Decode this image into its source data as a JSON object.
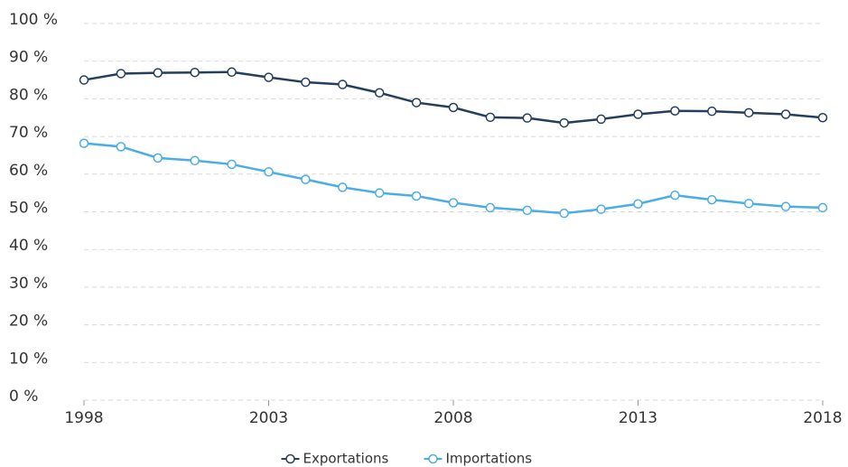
{
  "chart_data": {
    "type": "line",
    "x": [
      1998,
      1999,
      2000,
      2001,
      2002,
      2003,
      2004,
      2005,
      2006,
      2007,
      2008,
      2009,
      2010,
      2011,
      2012,
      2013,
      2014,
      2015,
      2016,
      2017,
      2018
    ],
    "series": [
      {
        "name": "Exportations",
        "color": "#243e5c",
        "values": [
          85,
          86.7,
          86.9,
          87,
          87.1,
          85.7,
          84.4,
          83.8,
          81.6,
          79,
          77.7,
          75.1,
          74.9,
          73.6,
          74.6,
          75.9,
          76.8,
          76.7,
          76.3,
          75.9,
          75
        ]
      },
      {
        "name": "Importations",
        "color": "#4aaee4",
        "values": [
          68.2,
          67.3,
          64.3,
          63.6,
          62.6,
          60.6,
          58.6,
          56.5,
          55,
          54.2,
          52.4,
          51.1,
          50.4,
          49.6,
          50.7,
          52.1,
          54.4,
          53.2,
          52.2,
          51.4,
          51.1
        ]
      }
    ],
    "xlim": [
      1998,
      2018
    ],
    "xticks": [
      1998,
      2003,
      2008,
      2013,
      2018
    ],
    "ylim": [
      0,
      100
    ],
    "yticks": [
      {
        "value": 0,
        "label": "0 %"
      },
      {
        "value": 10,
        "label": "10 %"
      },
      {
        "value": 20,
        "label": "20 %"
      },
      {
        "value": 30,
        "label": "30 %"
      },
      {
        "value": 40,
        "label": "40 %"
      },
      {
        "value": 50,
        "label": "50 %"
      },
      {
        "value": 60,
        "label": "60 %"
      },
      {
        "value": 70,
        "label": "70 %"
      },
      {
        "value": 80,
        "label": "80 %"
      },
      {
        "value": 90,
        "label": "90 %"
      },
      {
        "value": 100,
        "label": "100 %"
      }
    ],
    "grid": true,
    "legend": "bottom"
  }
}
